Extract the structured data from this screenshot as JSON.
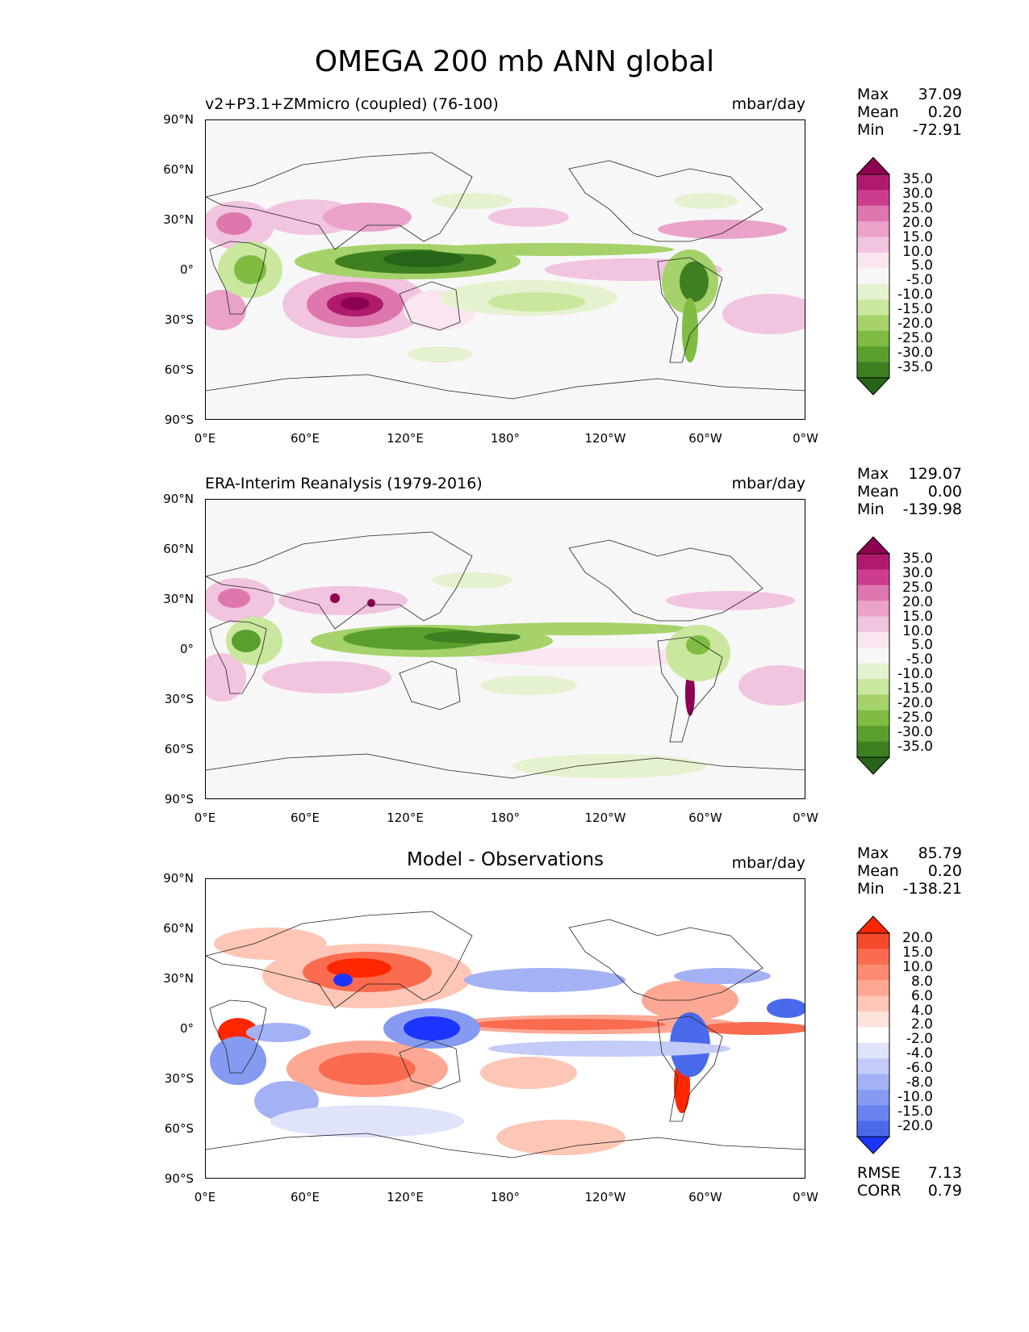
{
  "title": "OMEGA 200 mb ANN global",
  "x_ticks": [
    "0°E",
    "60°E",
    "120°E",
    "180°",
    "120°W",
    "60°W",
    "0°W"
  ],
  "y_ticks": [
    "90°N",
    "60°N",
    "30°N",
    "0°",
    "30°S",
    "60°S",
    "90°S"
  ],
  "panels": [
    {
      "subtitle": "v2+P3.1+ZMmicro (coupled) (76-100)",
      "units": "mbar/day",
      "stats": {
        "max_label": "Max",
        "max": "37.09",
        "mean_label": "Mean",
        "mean": "0.20",
        "min_label": "Min",
        "min": "-72.91"
      },
      "colorbar": {
        "labels": [
          "35.0",
          "30.0",
          "25.0",
          "20.0",
          "15.0",
          "10.0",
          "5.0",
          "-5.0",
          "-10.0",
          "-15.0",
          "-20.0",
          "-25.0",
          "-30.0",
          "-35.0"
        ],
        "colors": [
          "#8e0152",
          "#b01a6c",
          "#cd3d8e",
          "#de77ae",
          "#eaa2cb",
          "#f1c4e0",
          "#f9e6f1",
          "#f7f7f7",
          "#e5f2d0",
          "#c9e79d",
          "#a5d26a",
          "#7fbc41",
          "#5a9e2e",
          "#3d7f21",
          "#276419"
        ]
      }
    },
    {
      "subtitle": "ERA-Interim Reanalysis (1979-2016)",
      "units": "mbar/day",
      "stats": {
        "max_label": "Max",
        "max": "129.07",
        "mean_label": "Mean",
        "mean": "0.00",
        "min_label": "Min",
        "min": "-139.98"
      },
      "colorbar": {
        "labels": [
          "35.0",
          "30.0",
          "25.0",
          "20.0",
          "15.0",
          "10.0",
          "5.0",
          "-5.0",
          "-10.0",
          "-15.0",
          "-20.0",
          "-25.0",
          "-30.0",
          "-35.0"
        ],
        "colors": [
          "#8e0152",
          "#b01a6c",
          "#cd3d8e",
          "#de77ae",
          "#eaa2cb",
          "#f1c4e0",
          "#f9e6f1",
          "#f7f7f7",
          "#e5f2d0",
          "#c9e79d",
          "#a5d26a",
          "#7fbc41",
          "#5a9e2e",
          "#3d7f21",
          "#276419"
        ]
      }
    },
    {
      "center_title": "Model - Observations",
      "units": "mbar/day",
      "stats": {
        "max_label": "Max",
        "max": "85.79",
        "mean_label": "Mean",
        "mean": "0.20",
        "min_label": "Min",
        "min": "-138.21"
      },
      "colorbar": {
        "labels": [
          "20.0",
          "15.0",
          "10.0",
          "8.0",
          "6.0",
          "4.0",
          "2.0",
          "-2.0",
          "-4.0",
          "-6.0",
          "-8.0",
          "-10.0",
          "-15.0",
          "-20.0"
        ],
        "colors": [
          "#ff2600",
          "#f64a2c",
          "#fa6b4f",
          "#fb8a72",
          "#fca894",
          "#fdc6b6",
          "#fee3da",
          "#ffffff",
          "#e0e4fb",
          "#c3cbf8",
          "#a5b1f5",
          "#879af2",
          "#6882ef",
          "#4a6aec",
          "#1c34ff"
        ]
      },
      "rmse_label": "RMSE",
      "rmse": "7.13",
      "corr_label": "CORR",
      "corr": "0.79"
    }
  ],
  "chart_data": [
    {
      "type": "heatmap",
      "title": "v2+P3.1+ZMmicro (coupled) (76-100)",
      "variable": "OMEGA 200 mb ANN",
      "units": "mbar/day",
      "xlim": [
        0,
        360
      ],
      "ylim": [
        -90,
        90
      ],
      "max": 37.09,
      "mean": 0.2,
      "min": -72.91,
      "levels": [
        -35,
        -30,
        -25,
        -20,
        -15,
        -10,
        -5,
        5,
        10,
        15,
        20,
        25,
        30,
        35
      ]
    },
    {
      "type": "heatmap",
      "title": "ERA-Interim Reanalysis (1979-2016)",
      "variable": "OMEGA 200 mb ANN",
      "units": "mbar/day",
      "xlim": [
        0,
        360
      ],
      "ylim": [
        -90,
        90
      ],
      "max": 129.07,
      "mean": 0.0,
      "min": -139.98,
      "levels": [
        -35,
        -30,
        -25,
        -20,
        -15,
        -10,
        -5,
        5,
        10,
        15,
        20,
        25,
        30,
        35
      ]
    },
    {
      "type": "heatmap",
      "title": "Model - Observations",
      "variable": "OMEGA 200 mb ANN",
      "units": "mbar/day",
      "xlim": [
        0,
        360
      ],
      "ylim": [
        -90,
        90
      ],
      "max": 85.79,
      "mean": 0.2,
      "min": -138.21,
      "rmse": 7.13,
      "corr": 0.79,
      "levels": [
        -20,
        -15,
        -10,
        -8,
        -6,
        -4,
        -2,
        2,
        4,
        6,
        8,
        10,
        15,
        20
      ]
    }
  ]
}
